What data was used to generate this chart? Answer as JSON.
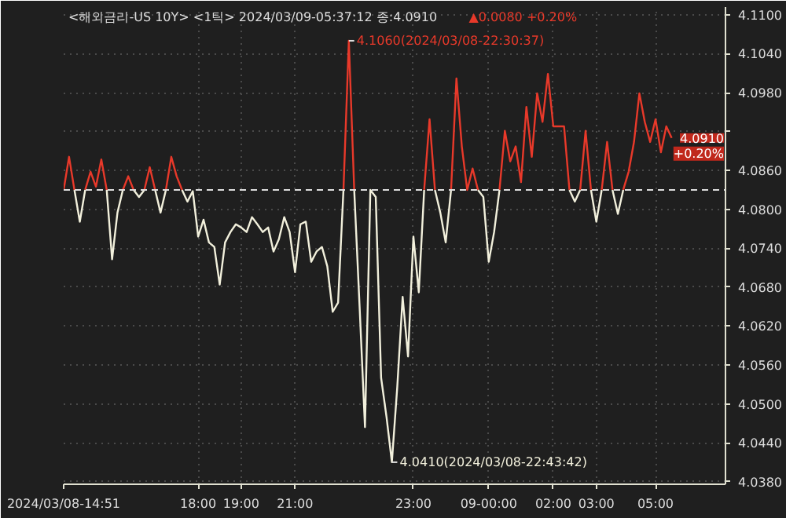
{
  "chart_data": {
    "type": "line",
    "title": "<해외금리-US 10Y> <1틱> 2024/03/09-05:37:12 종:4.0910",
    "subtitle": "▲0.0080 +0.20%",
    "categories": [
      "2024/03/08-14:51",
      null,
      null,
      null,
      null,
      null,
      null,
      null,
      null,
      null,
      null,
      null,
      null,
      null,
      null,
      null,
      null,
      null,
      null,
      null,
      null,
      null,
      null,
      null,
      null,
      "18:00",
      null,
      null,
      null,
      null,
      null,
      null,
      null,
      "19:00",
      null,
      null,
      null,
      null,
      null,
      null,
      null,
      null,
      null,
      "21:00",
      null,
      null,
      null,
      null,
      null,
      null,
      null,
      null,
      null,
      null,
      null,
      null,
      null,
      null,
      null,
      null,
      null,
      null,
      null,
      null,
      null,
      "23:00",
      null,
      null,
      null,
      null,
      null,
      null,
      null,
      null,
      null,
      null,
      null,
      null,
      null,
      "09-00:00",
      null,
      null,
      null,
      null,
      null,
      null,
      null,
      null,
      null,
      null,
      null,
      "02:00",
      null,
      null,
      null,
      null,
      null,
      null,
      null,
      "03:00",
      null,
      null,
      null,
      null,
      null,
      null,
      null,
      null,
      null,
      null,
      "05:00",
      null,
      null,
      null
    ],
    "series": [
      {
        "color": "#e8392a",
        "values": [
          4.083,
          4.0881,
          4.083,
          null,
          4.083,
          4.0858,
          4.0835,
          4.0877,
          4.083,
          null,
          null,
          4.083,
          4.0851,
          4.083,
          null,
          4.083,
          4.0865,
          4.083,
          null,
          4.083,
          4.0881,
          4.0851,
          4.083,
          null,
          null,
          null,
          null,
          null,
          null,
          null,
          null,
          null,
          null,
          null,
          null,
          null,
          null,
          null,
          null,
          null,
          null,
          null,
          null,
          null,
          null,
          null,
          null,
          null,
          null,
          null,
          null,
          null,
          4.083,
          4.106,
          4.083,
          null,
          null,
          null,
          null,
          null,
          null,
          null,
          null,
          null,
          null,
          null,
          null,
          4.083,
          4.0939,
          4.083,
          null,
          null,
          4.083,
          4.1002,
          4.0897,
          4.083,
          4.0863,
          4.083,
          null,
          null,
          null,
          4.083,
          4.0921,
          4.0874,
          4.0897,
          4.0842,
          4.0958,
          4.0881,
          4.0979,
          4.0935,
          4.1009,
          4.0928,
          4.0928,
          4.0928,
          4.083,
          null,
          4.083,
          4.0921,
          4.083,
          null,
          4.083,
          4.0904,
          4.083,
          null,
          4.083,
          4.0858,
          4.0904,
          4.0979,
          4.0935,
          4.0904,
          4.0939,
          4.0888,
          4.0928,
          4.091
        ]
      },
      {
        "color": "#f2f0dc",
        "values": [
          null,
          null,
          4.083,
          4.0781,
          4.083,
          null,
          null,
          null,
          4.083,
          4.0723,
          4.0795,
          4.083,
          null,
          4.083,
          4.0819,
          4.083,
          null,
          4.083,
          4.0795,
          4.083,
          null,
          null,
          4.083,
          4.0812,
          4.0828,
          4.0758,
          4.0784,
          4.0749,
          4.0742,
          4.0684,
          4.0749,
          4.0765,
          4.0777,
          4.0772,
          4.0765,
          4.0788,
          4.0777,
          4.0765,
          4.0772,
          4.0735,
          4.0754,
          4.0788,
          4.0765,
          4.0703,
          4.0777,
          4.0781,
          4.0719,
          4.0735,
          4.0742,
          4.0712,
          4.0642,
          4.0656,
          4.083,
          null,
          4.083,
          4.065,
          4.0464,
          4.083,
          4.0819,
          4.054,
          4.048,
          4.041,
          4.0526,
          4.0665,
          4.0573,
          4.0758,
          4.0672,
          4.083,
          null,
          4.083,
          4.0795,
          4.0749,
          4.083,
          null,
          null,
          null,
          null,
          4.083,
          4.0819,
          4.0719,
          4.0765,
          4.083,
          null,
          null,
          null,
          null,
          null,
          null,
          null,
          null,
          null,
          null,
          null,
          null,
          4.083,
          4.0812,
          4.083,
          null,
          4.083,
          4.0781,
          4.083,
          null,
          4.083,
          4.0793,
          4.083,
          null,
          null,
          null,
          null,
          null,
          null,
          null,
          null,
          null
        ]
      }
    ],
    "ylim": [
      4.0376,
      4.1112
    ],
    "yticks": [
      {
        "value": 4.038,
        "label": "4.0380"
      },
      {
        "value": 4.044,
        "label": "4.0440"
      },
      {
        "value": 4.05,
        "label": "4.0500"
      },
      {
        "value": 4.056,
        "label": "4.0560"
      },
      {
        "value": 4.062,
        "label": "4.0620"
      },
      {
        "value": 4.068,
        "label": "4.0680"
      },
      {
        "value": 4.074,
        "label": "4.0740"
      },
      {
        "value": 4.08,
        "label": "4.0800"
      },
      {
        "value": 4.086,
        "label": "4.0860"
      },
      {
        "value": 4.092,
        "label": null
      },
      {
        "value": 4.098,
        "label": "4.0980"
      },
      {
        "value": 4.104,
        "label": "4.1040"
      },
      {
        "value": 4.11,
        "label": "4.1100"
      }
    ],
    "ref_lines": [
      {
        "axis": "y",
        "value": 4.083,
        "color": "#dddddd",
        "line_style": "dashed"
      }
    ],
    "annotations": [
      "4.1060(2024/03/08-22:30:37)",
      "4.0410(2024/03/08-22:43:42)",
      "4.0910",
      "+0.20%"
    ],
    "grid": true,
    "marker": "none",
    "line_style": "solid"
  }
}
